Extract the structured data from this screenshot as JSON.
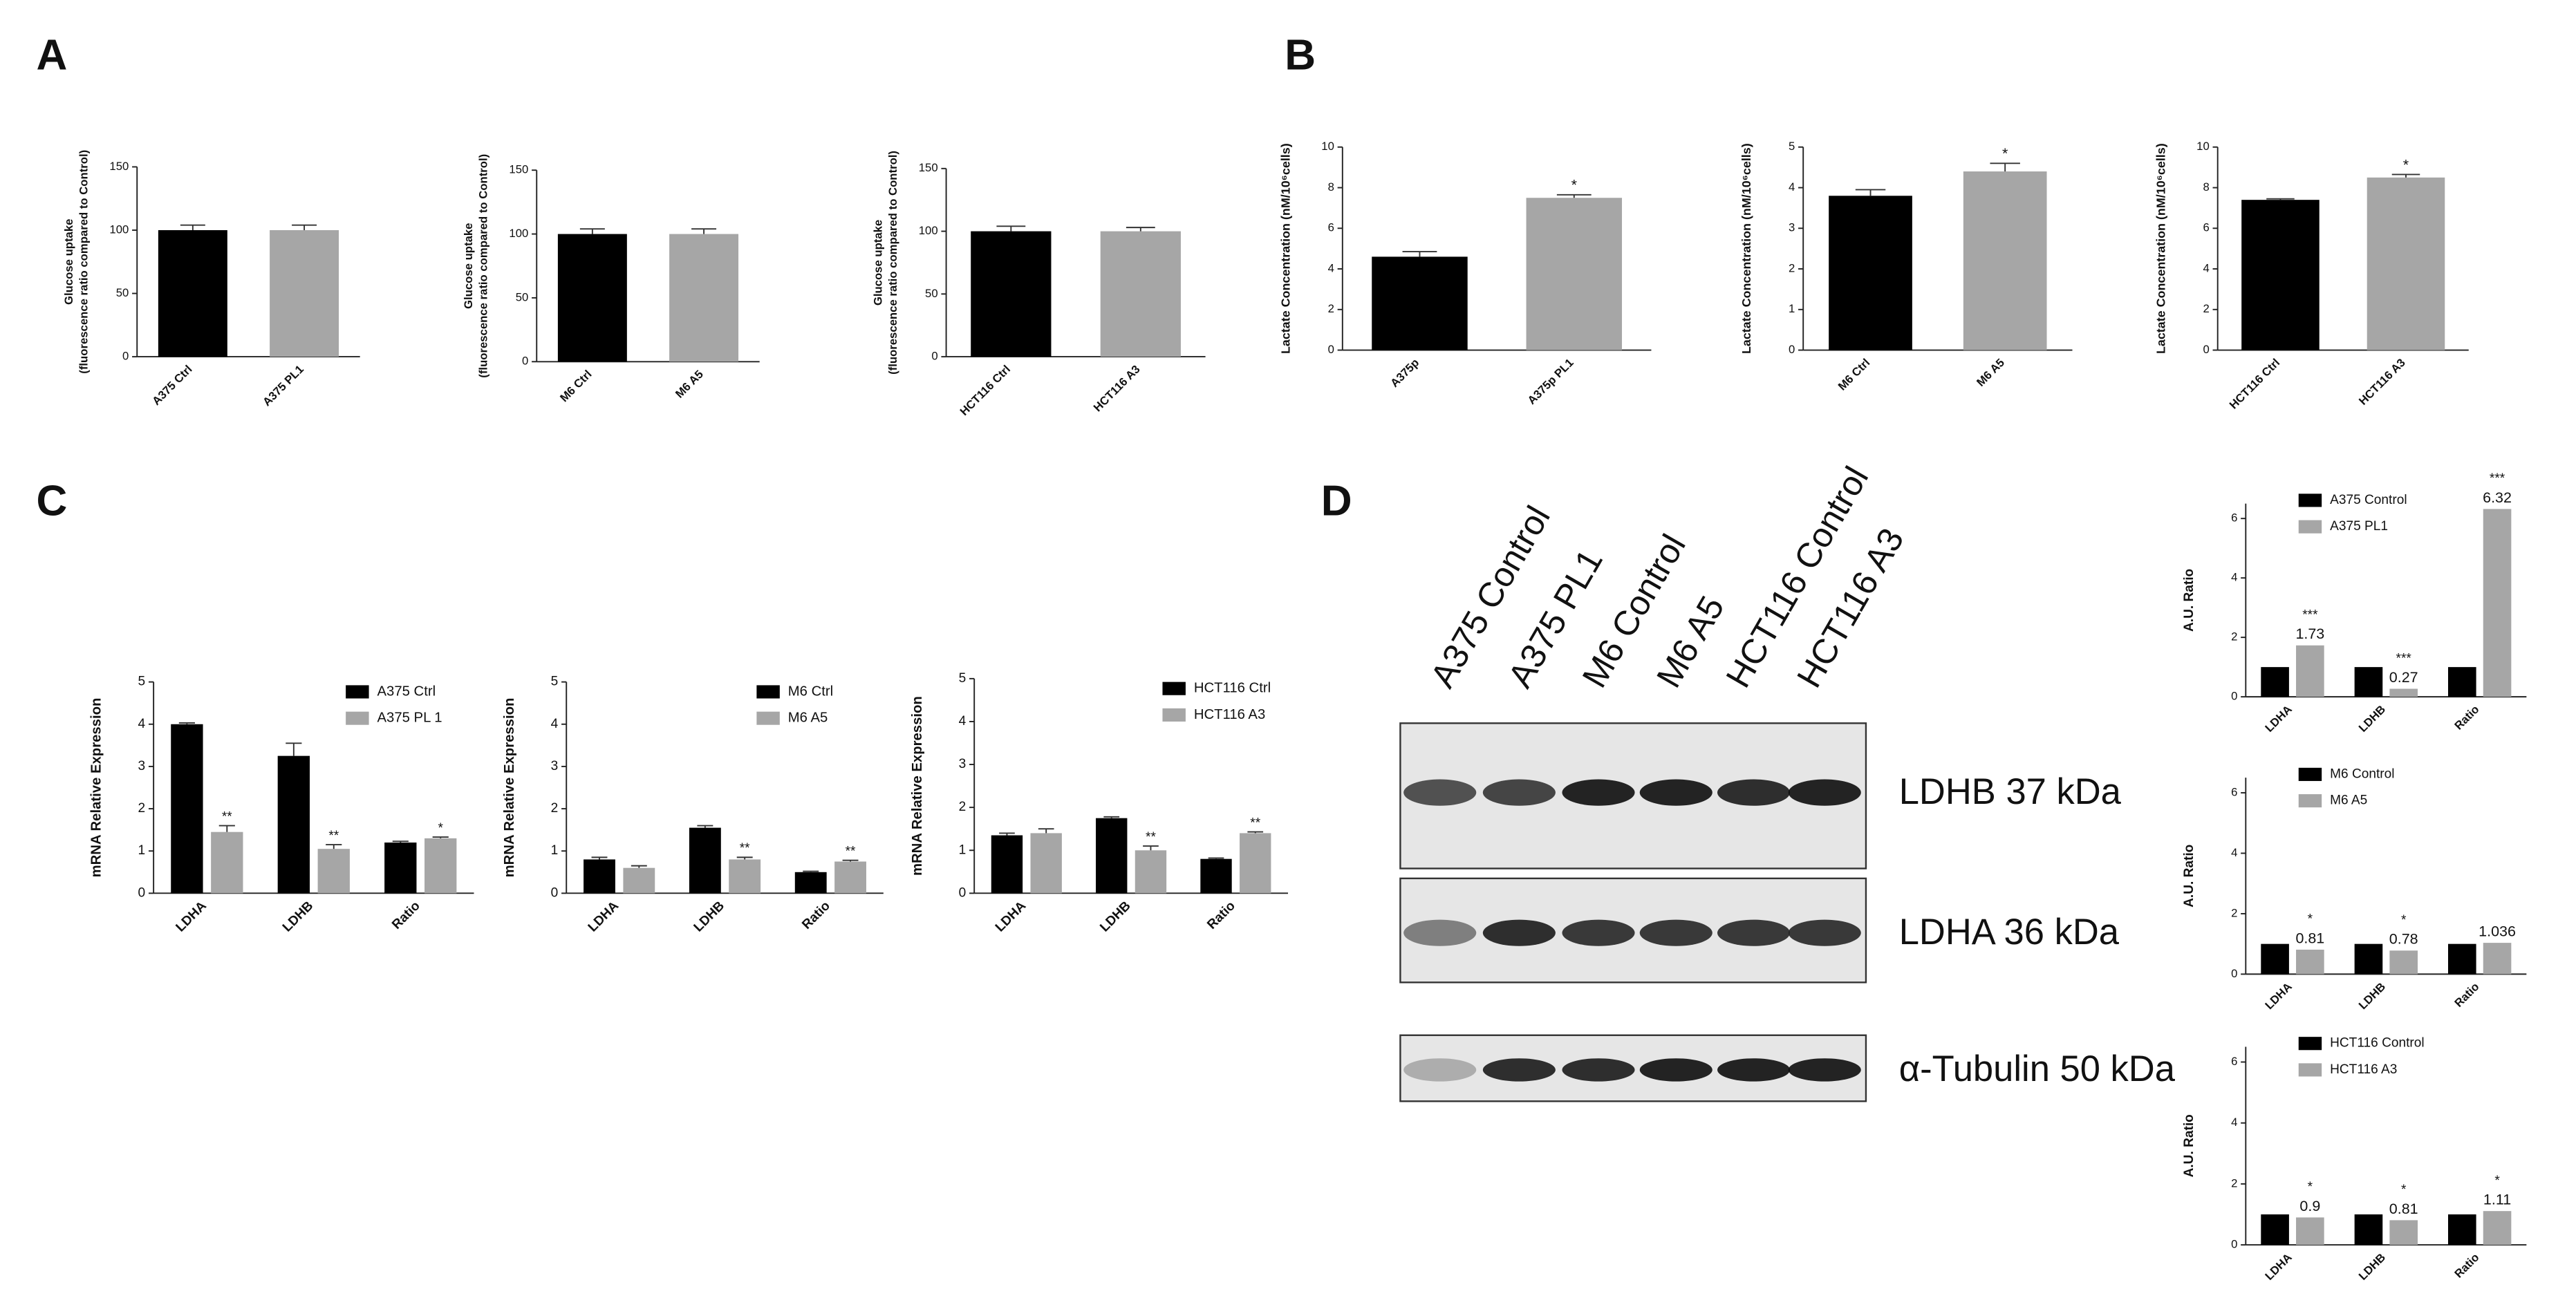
{
  "panels": [
    "A",
    "B",
    "C",
    "D"
  ],
  "blot": {
    "lanes": [
      "A375 Control",
      "A375 PL1",
      "M6 Control",
      "M6 A5",
      "HCT116 Control",
      "HCT116 A3"
    ],
    "bands": [
      "LDHB 37 kDa",
      "LDHA 36 kDa",
      "α-Tubulin 50 kDa"
    ]
  },
  "chart_data": [
    {
      "type": "bar",
      "y_label": [
        "Glucose uptake",
        "(fluorescence ratio compared to Control)"
      ],
      "categories": [
        "A375 Ctrl",
        "A375 PL1"
      ],
      "values": [
        100,
        100
      ],
      "errors": [
        4,
        4
      ],
      "colors": [
        "#000000",
        "#a6a6a6"
      ],
      "ylim": [
        0,
        150
      ],
      "yticks": [
        0,
        50,
        100,
        150
      ]
    },
    {
      "type": "bar",
      "y_label": [
        "Glucose uptake",
        "(fluorescence ratio compared to Control)"
      ],
      "categories": [
        "M6 Ctrl",
        "M6 A5"
      ],
      "values": [
        100,
        100
      ],
      "errors": [
        4,
        4
      ],
      "colors": [
        "#000000",
        "#a6a6a6"
      ],
      "ylim": [
        0,
        150
      ],
      "yticks": [
        0,
        50,
        100,
        150
      ]
    },
    {
      "type": "bar",
      "y_label": [
        "Glucose uptake",
        "(fluorescence ratio compared to Control)"
      ],
      "categories": [
        "HCT116 Ctrl",
        "HCT116 A3"
      ],
      "values": [
        100,
        100
      ],
      "errors": [
        4,
        3
      ],
      "colors": [
        "#000000",
        "#a6a6a6"
      ],
      "ylim": [
        0,
        150
      ],
      "yticks": [
        0,
        50,
        100,
        150
      ]
    },
    {
      "type": "bar",
      "y_label": [
        "Lactate Concentration (nM/10⁶cells)"
      ],
      "categories": [
        "A375p",
        "A375p PL1"
      ],
      "values": [
        4.6,
        7.5
      ],
      "errors": [
        0.25,
        0.15
      ],
      "annotations": [
        null,
        "*"
      ],
      "colors": [
        "#000000",
        "#a6a6a6"
      ],
      "ylim": [
        0,
        10
      ],
      "yticks": [
        0,
        2,
        4,
        6,
        8,
        10
      ]
    },
    {
      "type": "bar",
      "y_label": [
        "Lactate Concentration (nM/10⁶cells)"
      ],
      "categories": [
        "M6 Ctrl",
        "M6 A5"
      ],
      "values": [
        3.8,
        4.4
      ],
      "errors": [
        0.15,
        0.2
      ],
      "annotations": [
        null,
        "*"
      ],
      "colors": [
        "#000000",
        "#a6a6a6"
      ],
      "ylim": [
        0,
        5
      ],
      "yticks": [
        0,
        1,
        2,
        3,
        4,
        5
      ]
    },
    {
      "type": "bar",
      "y_label": [
        "Lactate Concentration (nM/10⁶cells)"
      ],
      "categories": [
        "HCT116 Ctrl",
        "HCT116 A3"
      ],
      "values": [
        7.4,
        8.5
      ],
      "errors": [
        0.05,
        0.15
      ],
      "annotations": [
        null,
        "*"
      ],
      "colors": [
        "#000000",
        "#a6a6a6"
      ],
      "ylim": [
        0,
        10
      ],
      "yticks": [
        0,
        2,
        4,
        6,
        8,
        10
      ]
    },
    {
      "type": "grouped_bar",
      "y_label": [
        "mRNA Relative Expression"
      ],
      "categories": [
        "LDHA",
        "LDHB",
        "Ratio"
      ],
      "series": [
        {
          "name": "A375 Ctrl",
          "color": "#000000",
          "values": [
            4.0,
            3.25,
            1.2
          ],
          "errors": [
            0.03,
            0.3,
            0.03
          ]
        },
        {
          "name": "A375 PL 1",
          "color": "#a6a6a6",
          "values": [
            1.45,
            1.05,
            1.3
          ],
          "errors": [
            0.15,
            0.1,
            0.03
          ]
        }
      ],
      "annotations": [
        "**",
        "**",
        "*"
      ],
      "legend": "upper right",
      "ylim": [
        0,
        5
      ],
      "yticks": [
        0,
        1,
        2,
        3,
        4,
        5
      ]
    },
    {
      "type": "grouped_bar",
      "y_label": [
        "mRNA Relative Expression"
      ],
      "categories": [
        "LDHA",
        "LDHB",
        "Ratio"
      ],
      "series": [
        {
          "name": "M6 Ctrl",
          "color": "#000000",
          "values": [
            0.8,
            1.55,
            0.5
          ],
          "errors": [
            0.05,
            0.05,
            0.02
          ]
        },
        {
          "name": "M6 A5",
          "color": "#a6a6a6",
          "values": [
            0.6,
            0.8,
            0.75
          ],
          "errors": [
            0.05,
            0.05,
            0.03
          ]
        }
      ],
      "annotations": [
        null,
        "**",
        "**"
      ],
      "legend": "upper right",
      "ylim": [
        0,
        5
      ],
      "yticks": [
        0,
        1,
        2,
        3,
        4,
        5
      ]
    },
    {
      "type": "grouped_bar",
      "y_label": [
        "mRNA Relative Expression"
      ],
      "categories": [
        "LDHA",
        "LDHB",
        "Ratio"
      ],
      "series": [
        {
          "name": "HCT116 Ctrl",
          "color": "#000000",
          "values": [
            1.35,
            1.75,
            0.8
          ],
          "errors": [
            0.05,
            0.03,
            0.02
          ]
        },
        {
          "name": "HCT116 A3",
          "color": "#a6a6a6",
          "values": [
            1.4,
            1.0,
            1.4
          ],
          "errors": [
            0.1,
            0.1,
            0.03
          ]
        }
      ],
      "annotations": [
        null,
        "**",
        "**"
      ],
      "legend": "upper right",
      "ylim": [
        0,
        5
      ],
      "yticks": [
        0,
        1,
        2,
        3,
        4,
        5
      ]
    },
    {
      "type": "grouped_bar",
      "y_label": [
        "A.U. Ratio"
      ],
      "categories": [
        "LDHA",
        "LDHB",
        "Ratio"
      ],
      "series": [
        {
          "name": "A375 Control",
          "color": "#000000",
          "values": [
            1,
            1,
            1
          ]
        },
        {
          "name": "A375 PL1",
          "color": "#a6a6a6",
          "values": [
            1.73,
            0.27,
            6.32
          ],
          "value_labels": [
            "1.73",
            "0.27",
            "6.32"
          ]
        }
      ],
      "annotations": [
        "***",
        "***",
        "***"
      ],
      "legend": "upper left",
      "ylim": [
        0,
        6.5
      ],
      "yticks": [
        0,
        2,
        4,
        6
      ]
    },
    {
      "type": "grouped_bar",
      "y_label": [
        "A.U. Ratio"
      ],
      "categories": [
        "LDHA",
        "LDHB",
        "Ratio"
      ],
      "series": [
        {
          "name": "M6 Control",
          "color": "#000000",
          "values": [
            1,
            1,
            1
          ]
        },
        {
          "name": "M6 A5",
          "color": "#a6a6a6",
          "values": [
            0.81,
            0.78,
            1.036
          ],
          "value_labels": [
            "0.81",
            "0.78",
            "1.036"
          ]
        }
      ],
      "annotations": [
        "*",
        "*",
        null
      ],
      "legend": "upper left",
      "ylim": [
        0,
        6.5
      ],
      "yticks": [
        0,
        2,
        4,
        6
      ]
    },
    {
      "type": "grouped_bar",
      "y_label": [
        "A.U. Ratio"
      ],
      "categories": [
        "LDHA",
        "LDHB",
        "Ratio"
      ],
      "series": [
        {
          "name": "HCT116 Control",
          "color": "#000000",
          "values": [
            1,
            1,
            1
          ]
        },
        {
          "name": "HCT116 A3",
          "color": "#a6a6a6",
          "values": [
            0.9,
            0.81,
            1.11
          ],
          "value_labels": [
            "0.9",
            "0.81",
            "1.11"
          ]
        }
      ],
      "annotations": [
        "*",
        "*",
        "*"
      ],
      "legend": "upper left",
      "ylim": [
        0,
        6.5
      ],
      "yticks": [
        0,
        2,
        4,
        6
      ]
    }
  ]
}
